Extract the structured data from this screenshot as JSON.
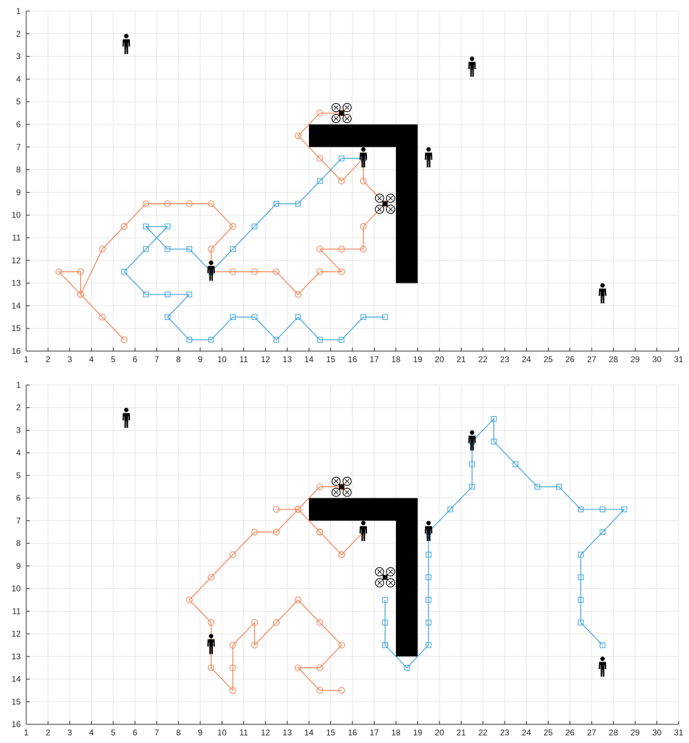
{
  "colors": {
    "grid": "#e6e6e6",
    "axis": "#262626",
    "series_orange": "#f0875a",
    "series_blue": "#4aa8dc",
    "obstacle": "#000000",
    "icon": "#000000"
  },
  "chart_data": [
    {
      "type": "line",
      "title": "",
      "xlabel": "",
      "ylabel": "",
      "xlim": [
        1,
        31
      ],
      "ylim": [
        1,
        16
      ],
      "y_reversed": true,
      "grid": true,
      "xticks": [
        1,
        2,
        3,
        4,
        5,
        6,
        7,
        8,
        9,
        10,
        11,
        12,
        13,
        14,
        15,
        16,
        17,
        18,
        19,
        20,
        21,
        22,
        23,
        24,
        25,
        26,
        27,
        28,
        29,
        30,
        31
      ],
      "yticks": [
        1,
        2,
        3,
        4,
        5,
        6,
        7,
        8,
        9,
        10,
        11,
        12,
        13,
        14,
        15,
        16
      ],
      "obstacle": {
        "polygon": [
          [
            14,
            6
          ],
          [
            19,
            6
          ],
          [
            19,
            13
          ],
          [
            18,
            13
          ],
          [
            18,
            7
          ],
          [
            14,
            7
          ]
        ]
      },
      "persons": [
        [
          5.6,
          2.5
        ],
        [
          21.5,
          3.5
        ],
        [
          19.5,
          7.5
        ],
        [
          16.5,
          7.5
        ],
        [
          9.5,
          12.5
        ],
        [
          27.5,
          13.5
        ]
      ],
      "drones": [
        [
          15.5,
          5.5
        ],
        [
          17.5,
          9.5
        ]
      ],
      "series": [
        {
          "marker": "circle",
          "color": "#f0875a",
          "x": [
            5.5,
            4.5,
            3.5,
            3.5,
            2.5,
            3.5,
            4.5,
            5.5,
            6.5,
            7.5,
            8.5,
            9.5,
            10.5,
            9.5,
            9.5,
            10.5,
            11.5,
            12.5,
            13.5,
            14.5,
            15.5,
            14.5,
            15.5,
            16.5,
            16.5,
            17.5,
            16.5,
            16.5,
            15.5,
            14.5,
            13.5,
            14.5,
            15.5
          ],
          "y": [
            15.5,
            14.5,
            13.5,
            12.5,
            12.5,
            13.5,
            11.5,
            10.5,
            9.5,
            9.5,
            9.5,
            9.5,
            10.5,
            11.5,
            12.5,
            12.5,
            12.5,
            12.5,
            13.5,
            12.5,
            12.5,
            11.5,
            11.5,
            11.5,
            10.5,
            9.5,
            8.5,
            7.5,
            8.5,
            7.5,
            6.5,
            5.5,
            5.5
          ]
        },
        {
          "marker": "square",
          "color": "#4aa8dc",
          "x": [
            17.5,
            16.5,
            15.5,
            14.5,
            13.5,
            12.5,
            11.5,
            10.5,
            9.5,
            8.5,
            7.5,
            8.5,
            7.5,
            6.5,
            5.5,
            6.5,
            7.5,
            6.5,
            7.5,
            8.5,
            9.5,
            10.5,
            11.5,
            12.5,
            13.5,
            14.5,
            15.5,
            16.5
          ],
          "y": [
            14.5,
            14.5,
            15.5,
            15.5,
            14.5,
            15.5,
            14.5,
            14.5,
            15.5,
            15.5,
            14.5,
            13.5,
            13.5,
            13.5,
            12.5,
            11.5,
            10.5,
            10.5,
            11.5,
            11.5,
            12.5,
            11.5,
            10.5,
            9.5,
            9.5,
            8.5,
            7.5,
            7.5
          ]
        }
      ]
    },
    {
      "type": "line",
      "title": "",
      "xlabel": "",
      "ylabel": "",
      "xlim": [
        1,
        31
      ],
      "ylim": [
        1,
        16
      ],
      "y_reversed": true,
      "grid": true,
      "xticks": [
        1,
        2,
        3,
        4,
        5,
        6,
        7,
        8,
        9,
        10,
        11,
        12,
        13,
        14,
        15,
        16,
        17,
        18,
        19,
        20,
        21,
        22,
        23,
        24,
        25,
        26,
        27,
        28,
        29,
        30,
        31
      ],
      "yticks": [
        1,
        2,
        3,
        4,
        5,
        6,
        7,
        8,
        9,
        10,
        11,
        12,
        13,
        14,
        15,
        16
      ],
      "obstacle": {
        "polygon": [
          [
            14,
            6
          ],
          [
            19,
            6
          ],
          [
            19,
            13
          ],
          [
            18,
            13
          ],
          [
            18,
            7
          ],
          [
            14,
            7
          ]
        ]
      },
      "persons": [
        [
          5.6,
          2.5
        ],
        [
          21.5,
          3.5
        ],
        [
          19.5,
          7.5
        ],
        [
          16.5,
          7.5
        ],
        [
          9.5,
          12.5
        ],
        [
          27.5,
          13.5
        ]
      ],
      "drones": [
        [
          15.5,
          5.5
        ],
        [
          17.5,
          9.5
        ]
      ],
      "series": [
        {
          "marker": "circle",
          "color": "#f0875a",
          "x": [
            15.5,
            14.5,
            13.5,
            14.5,
            14.5,
            15.5,
            16.5,
            15.5,
            14.5,
            13.5,
            12.5,
            13.5,
            12.5,
            11.5,
            10.5,
            9.5,
            8.5,
            9.5,
            9.5,
            10.5,
            10.5,
            10.5,
            11.5,
            11.5,
            12.5,
            13.5,
            14.5,
            15.5,
            14.5,
            13.5,
            14.5,
            15.5
          ],
          "y": [
            5.5,
            5.5,
            6.5,
            7.5,
            7.5,
            8.5,
            7.5,
            8.5,
            7.5,
            6.5,
            6.5,
            6.5,
            7.5,
            7.5,
            8.5,
            9.5,
            10.5,
            11.5,
            13.5,
            14.5,
            13.5,
            12.5,
            11.5,
            12.5,
            11.5,
            10.5,
            11.5,
            12.5,
            13.5,
            13.5,
            14.5,
            14.5
          ]
        },
        {
          "marker": "square",
          "color": "#4aa8dc",
          "x": [
            17.5,
            17.5,
            17.5,
            17.5,
            18.5,
            19.5,
            19.5,
            19.5,
            19.5,
            19.5,
            19.5,
            20.5,
            21.5,
            21.5,
            21.5,
            22.5,
            22.5,
            23.5,
            24.5,
            25.5,
            26.5,
            27.5,
            28.5,
            27.5,
            26.5,
            26.5,
            26.5,
            26.5,
            27.5
          ],
          "y": [
            10.5,
            11.5,
            12.5,
            12.5,
            13.5,
            12.5,
            11.5,
            10.5,
            9.5,
            8.5,
            7.5,
            6.5,
            5.5,
            4.5,
            3.5,
            2.5,
            3.5,
            4.5,
            5.5,
            5.5,
            6.5,
            6.5,
            6.5,
            7.5,
            8.5,
            9.5,
            10.5,
            11.5,
            12.5
          ]
        }
      ]
    }
  ]
}
